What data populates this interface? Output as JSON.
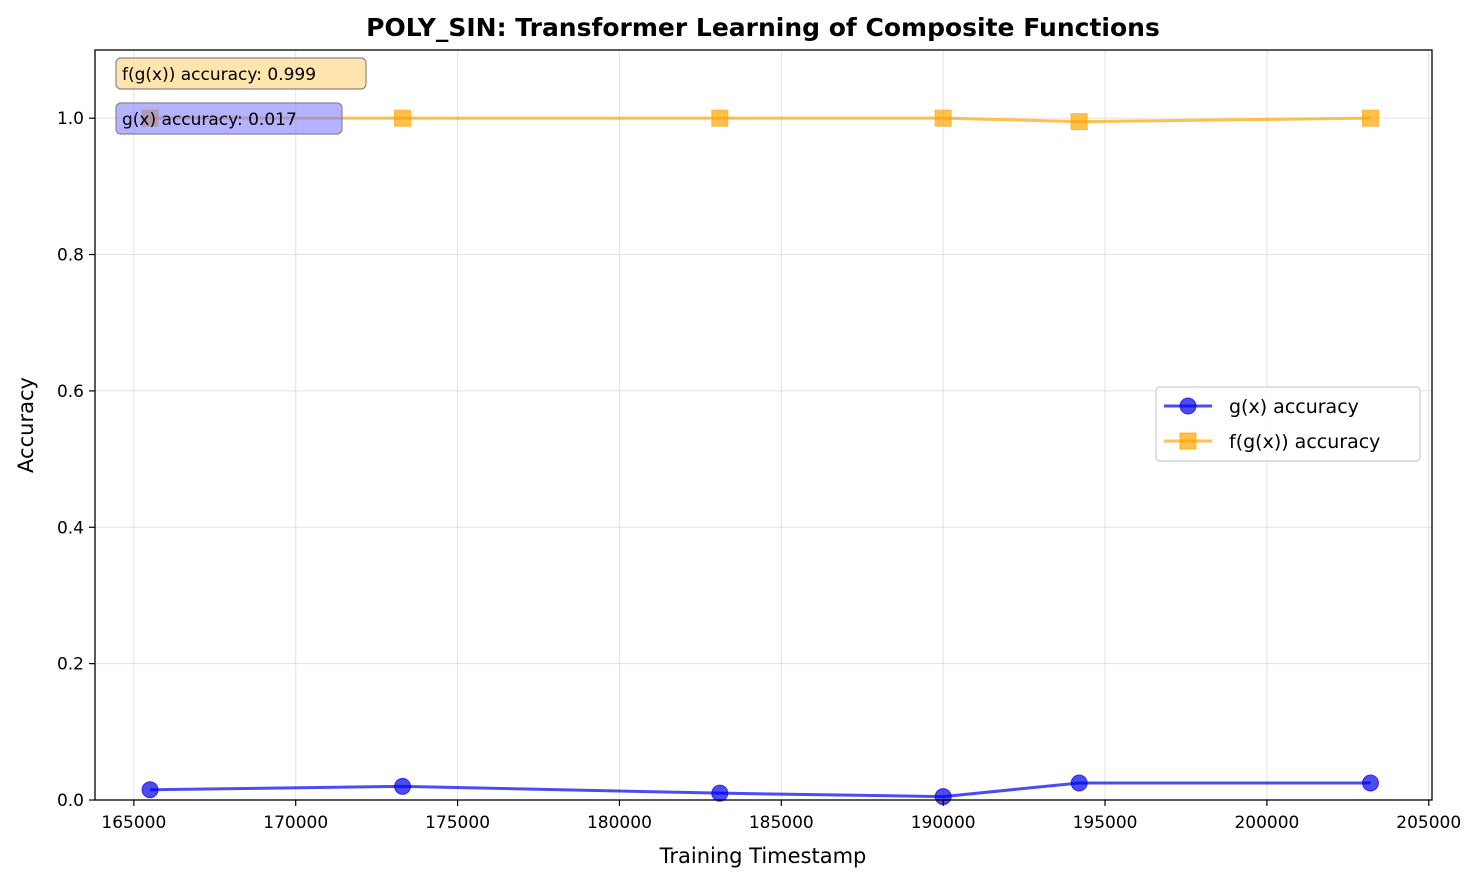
{
  "chart_data": {
    "type": "line",
    "title": "POLY_SIN: Transformer Learning of Composite Functions",
    "xlabel": "Training Timestamp",
    "ylabel": "Accuracy",
    "xlim": [
      163800,
      205100
    ],
    "ylim": [
      0.0,
      1.1
    ],
    "x_ticks": [
      165000,
      170000,
      175000,
      180000,
      185000,
      190000,
      195000,
      200000,
      205000
    ],
    "y_ticks": [
      0.0,
      0.2,
      0.4,
      0.6,
      0.8,
      1.0
    ],
    "grid": true,
    "legend_position": "center-right",
    "x": [
      165500,
      173300,
      183100,
      190000,
      194200,
      203200
    ],
    "series": [
      {
        "name": "g(x) accuracy",
        "marker": "circle",
        "color": "#0000ee",
        "values": [
          0.015,
          0.02,
          0.01,
          0.005,
          0.025,
          0.025
        ]
      },
      {
        "name": "f(g(x)) accuracy",
        "marker": "square",
        "color": "#ffa500",
        "values": [
          1.0,
          1.0,
          1.0,
          1.0,
          0.995,
          1.0
        ]
      }
    ],
    "annotations": [
      {
        "text": "f(g(x)) accuracy: 0.999",
        "color": "#ffdd99"
      },
      {
        "text": "g(x) accuracy: 0.017",
        "color": "#8080ff"
      }
    ]
  }
}
